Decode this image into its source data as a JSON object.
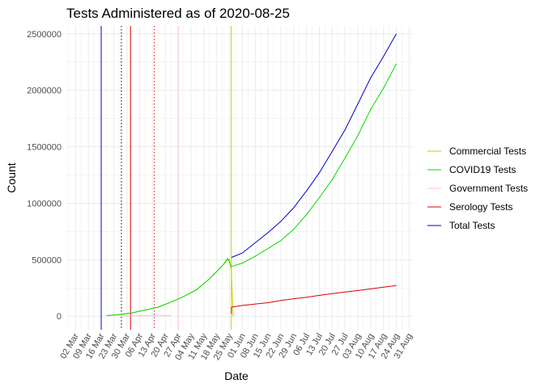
{
  "chart_data": {
    "type": "line",
    "title": "Tests Administered as of 2020-08-25",
    "xlabel": "Date",
    "ylabel": "Count",
    "xlim": [
      "2020-02-26",
      "2020-09-02"
    ],
    "ylim": [
      -120000,
      2570000
    ],
    "x_tick_labels": [
      "02 Mar",
      "09 Mar",
      "16 Mar",
      "23 Mar",
      "30 Mar",
      "06 Apr",
      "13 Apr",
      "20 Apr",
      "27 Apr",
      "04 May",
      "11 May",
      "18 May",
      "25 May",
      "01 Jun",
      "08 Jun",
      "15 Jun",
      "22 Jun",
      "29 Jun",
      "06 Jul",
      "13 Jul",
      "20 Jul",
      "27 Jul",
      "03 Aug",
      "10 Aug",
      "17 Aug",
      "24 Aug",
      "31 Aug"
    ],
    "y_tick_labels": [
      "0",
      "500000",
      "1000000",
      "1500000",
      "2000000",
      "2500000"
    ],
    "y_ticks": [
      0,
      500000,
      1000000,
      1500000,
      2000000,
      2500000
    ],
    "grid": true,
    "legend_position": "right",
    "series": [
      {
        "name": "Commercial Tests",
        "color": "#CCCC00",
        "x": [
          "2020-03-19",
          "2020-03-26",
          "2020-04-02",
          "2020-04-09",
          "2020-04-16",
          "2020-04-23",
          "2020-04-30",
          "2020-05-07",
          "2020-05-14",
          "2020-05-21",
          "2020-05-24",
          "2020-05-25",
          "2020-05-26",
          "2020-05-27"
        ],
        "y": [
          5000,
          15000,
          30000,
          55000,
          80000,
          125000,
          175000,
          235000,
          330000,
          445000,
          500000,
          505000,
          400000,
          0
        ]
      },
      {
        "name": "COVID19 Tests",
        "color": "#00DD00",
        "x": [
          "2020-03-19",
          "2020-03-26",
          "2020-04-02",
          "2020-04-09",
          "2020-04-16",
          "2020-04-23",
          "2020-04-30",
          "2020-05-07",
          "2020-05-14",
          "2020-05-21",
          "2020-05-24",
          "2020-05-26",
          "2020-06-01",
          "2020-06-08",
          "2020-06-15",
          "2020-06-22",
          "2020-06-29",
          "2020-07-06",
          "2020-07-13",
          "2020-07-20",
          "2020-07-27",
          "2020-08-03",
          "2020-08-10",
          "2020-08-17",
          "2020-08-24"
        ],
        "y": [
          5000,
          15000,
          30000,
          55000,
          80000,
          125000,
          175000,
          235000,
          330000,
          445000,
          510000,
          440000,
          470000,
          530000,
          600000,
          670000,
          770000,
          900000,
          1050000,
          1210000,
          1400000,
          1600000,
          1830000,
          2020000,
          2235000
        ]
      },
      {
        "name": "Government Tests",
        "color": "#FFC0CB",
        "x": [
          "2020-03-26",
          "2020-04-02",
          "2020-04-09",
          "2020-04-16",
          "2020-04-23"
        ],
        "y": [
          3000,
          4000,
          5000,
          5500,
          6000
        ]
      },
      {
        "name": "Serology Tests",
        "color": "#DD0000",
        "x": [
          "2020-05-26",
          "2020-05-26",
          "2020-06-01",
          "2020-06-08",
          "2020-06-15",
          "2020-06-22",
          "2020-06-29",
          "2020-07-06",
          "2020-07-13",
          "2020-07-20",
          "2020-07-27",
          "2020-08-03",
          "2020-08-10",
          "2020-08-17",
          "2020-08-24"
        ],
        "y": [
          20000,
          80000,
          95000,
          108000,
          120000,
          140000,
          155000,
          168000,
          185000,
          200000,
          215000,
          228000,
          242000,
          258000,
          272000
        ]
      },
      {
        "name": "Total Tests",
        "color": "#0000CC",
        "x": [
          "2020-05-26",
          "2020-06-01",
          "2020-06-08",
          "2020-06-15",
          "2020-06-22",
          "2020-06-29",
          "2020-07-06",
          "2020-07-13",
          "2020-07-20",
          "2020-07-27",
          "2020-08-03",
          "2020-08-10",
          "2020-08-17",
          "2020-08-24"
        ],
        "y": [
          520000,
          560000,
          650000,
          740000,
          840000,
          960000,
          1110000,
          1270000,
          1460000,
          1650000,
          1880000,
          2110000,
          2300000,
          2500000
        ]
      }
    ],
    "vlines": [
      {
        "x": "2020-03-16",
        "color": "#0000CC",
        "dash": "solid"
      },
      {
        "x": "2020-03-27",
        "color": "#000000",
        "dash": "dotted"
      },
      {
        "x": "2020-04-01",
        "color": "#DD0000",
        "dash": "solid"
      },
      {
        "x": "2020-04-14",
        "color": "#DD0000",
        "dash": "dotted"
      },
      {
        "x": "2020-04-27",
        "color": "#FFC0CB",
        "dash": "solid"
      },
      {
        "x": "2020-05-26",
        "color": "#CCCC00",
        "dash": "solid"
      }
    ]
  }
}
